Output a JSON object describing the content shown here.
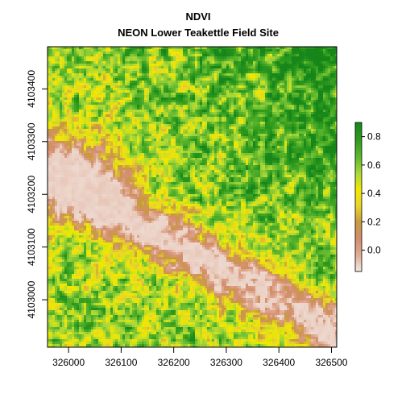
{
  "chart_data": {
    "type": "heatmap",
    "title": "NDVI",
    "subtitle": "NEON Lower Teakettle Field Site",
    "xlabel": "",
    "ylabel": "",
    "xlim": [
      325960,
      326510
    ],
    "ylim": [
      4102910,
      4103480
    ],
    "x_ticks": [
      326000,
      326100,
      326200,
      326300,
      326400,
      326500
    ],
    "x_tick_labels": [
      "326000",
      "326100",
      "326200",
      "326300",
      "326400",
      "326500"
    ],
    "y_ticks": [
      4103000,
      4103100,
      4103200,
      4103300,
      4103400
    ],
    "y_tick_labels": [
      "4103000",
      "4103100",
      "4103200",
      "4103300",
      "4103400"
    ],
    "colorbar": {
      "range": [
        -0.15,
        0.9
      ],
      "ticks": [
        0.0,
        0.2,
        0.4,
        0.6,
        0.8
      ],
      "tick_labels": [
        "0.0",
        "0.2",
        "0.4",
        "0.6",
        "0.8"
      ],
      "colors": [
        "#f2e9e6",
        "#e0ad94",
        "#d48d6f",
        "#c79a3e",
        "#e8d42a",
        "#f0e800",
        "#a6d63a",
        "#5cb52c",
        "#2e9a1e",
        "#16861a"
      ]
    },
    "legend": "right",
    "grid": false,
    "description_regions": [
      {
        "area": "upper-right",
        "ndvi_level": "high"
      },
      {
        "area": "diagonal-band",
        "ndvi_level": "low"
      },
      {
        "area": "bottom-left",
        "ndvi_level": "mixed"
      }
    ]
  }
}
